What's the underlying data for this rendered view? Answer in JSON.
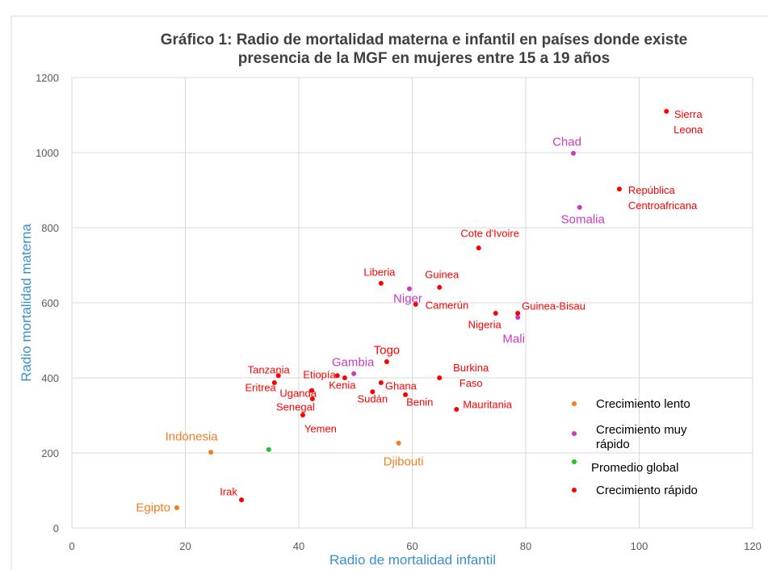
{
  "chart_data": {
    "type": "scatter",
    "title": "Gráfico 1: Radio de mortalidad materna e infantil en países donde existe presencia de la MGF en mujeres entre 15 a 19 años",
    "x_label": "Radio de mortalidad infantil",
    "y_label": "Radio mortalidad materna",
    "xlim": [
      0,
      120
    ],
    "xticks": [
      0,
      20,
      40,
      60,
      80,
      100,
      120
    ],
    "ylim": [
      0,
      1200
    ],
    "yticks": [
      0,
      200,
      400,
      600,
      800,
      1000,
      1200
    ],
    "grid": true,
    "legend": "lower right",
    "series": [
      {
        "name": "Crecimiento lento",
        "color": "#f47c20",
        "labels": [
          "Indonesia",
          "Djibouti",
          "Egipto"
        ],
        "x": [
          24.5,
          57.6,
          18.5
        ],
        "values": [
          202,
          226,
          54
        ]
      },
      {
        "name": "Crecimiento muy rápido",
        "color": "#c83cc0",
        "labels": [
          "Chad",
          "Somalia",
          "Niger",
          "Mali",
          "Gambia"
        ],
        "x": [
          88.4,
          89.5,
          59.5,
          78.6,
          49.7
        ],
        "values": [
          998,
          854,
          637,
          561,
          411
        ]
      },
      {
        "name": "Promedio global",
        "color": "#22c022",
        "x": [
          34.7
        ],
        "values": [
          209
        ]
      },
      {
        "name": "Crecimiento rápido",
        "color": "#ff0000",
        "labels": [
          "Sierra Leona",
          "República Centroafricana",
          "Cote d'Ivoire",
          "Liberia",
          "Guinea",
          "Camerún",
          "Nigeria",
          "Guinea-Bisau",
          "Togo",
          "Burkina Faso",
          "Tanzania",
          "Etiopía",
          "Kenia",
          "Eritrea",
          "Ghana",
          "Uganda",
          "Sudán",
          "Benin",
          "Senegal",
          "Mauritania",
          "Yemen",
          "Irak"
        ],
        "x": [
          104.8,
          96.5,
          71.7,
          54.5,
          64.8,
          60.6,
          74.7,
          78.6,
          55.5,
          64.8,
          36.4,
          46.8,
          48.1,
          35.7,
          54.5,
          42.3,
          53,
          58.8,
          42.4,
          67.8,
          40.7,
          29.9
        ],
        "values": [
          1110,
          903,
          746,
          652,
          641,
          596,
          572,
          572,
          443,
          400,
          406,
          406,
          400,
          387,
          387,
          366,
          363,
          355,
          344,
          316,
          301,
          75
        ]
      }
    ]
  }
}
